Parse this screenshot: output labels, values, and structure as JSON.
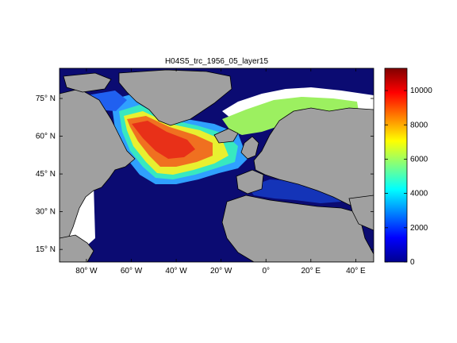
{
  "title": "H04S5_trc_1956_05_layer15",
  "map": {
    "lon_ticks": [
      {
        "value": -80,
        "label": "80° W"
      },
      {
        "value": -60,
        "label": "60° W"
      },
      {
        "value": -40,
        "label": "40° W"
      },
      {
        "value": -20,
        "label": "20° W"
      },
      {
        "value": 0,
        "label": "0°"
      },
      {
        "value": 20,
        "label": "20° E"
      },
      {
        "value": 40,
        "label": "40° E"
      }
    ],
    "lat_ticks": [
      {
        "value": 75,
        "label": "75° N"
      },
      {
        "value": 60,
        "label": "60° N"
      },
      {
        "value": 45,
        "label": "45° N"
      },
      {
        "value": 30,
        "label": "30° N"
      },
      {
        "value": 15,
        "label": "15° N"
      }
    ],
    "land_color": "#a0a0a0",
    "coastline_color": "#000000",
    "missing_color": "#ffffff"
  },
  "colorbar": {
    "min": 0,
    "max": 11300,
    "ticks": [
      "0",
      "2000",
      "4000",
      "6000",
      "8000",
      "10000"
    ],
    "tick_values": [
      0,
      2000,
      4000,
      6000,
      8000,
      10000
    ],
    "colormap": "jet"
  }
}
